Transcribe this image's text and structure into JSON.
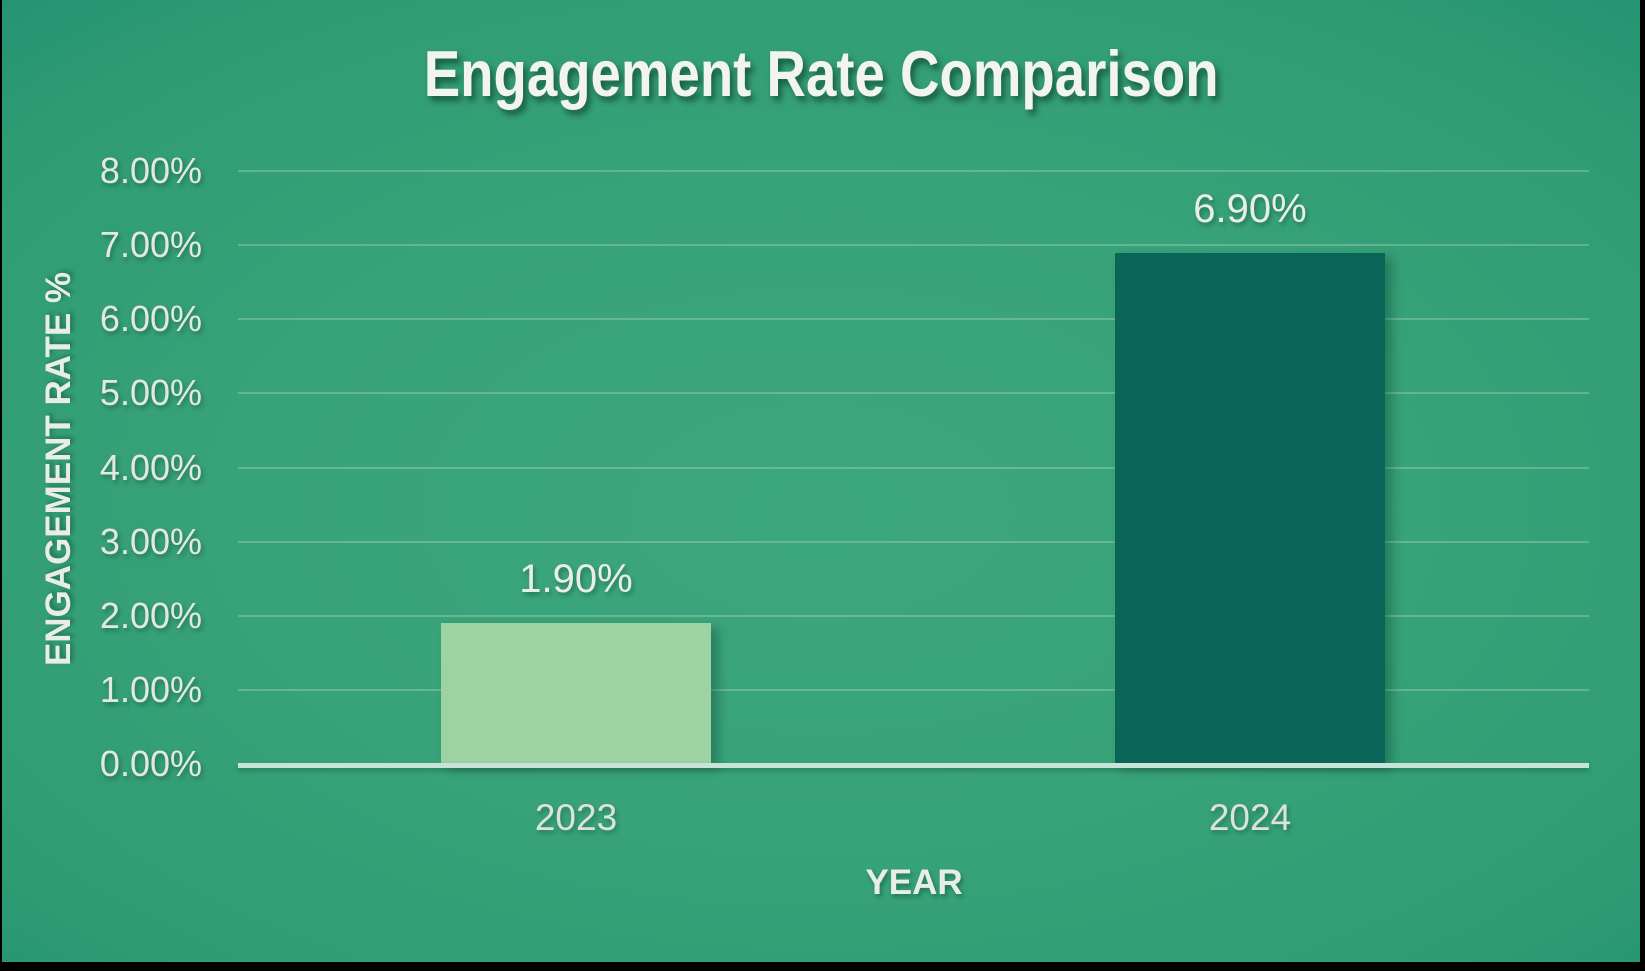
{
  "chart_data": {
    "type": "bar",
    "title": "Engagement Rate Comparison",
    "xlabel": "YEAR",
    "ylabel": "ENGAGEMENT RATE %",
    "categories": [
      "2023",
      "2024"
    ],
    "values": [
      1.9,
      6.9
    ],
    "value_labels": [
      "1.90%",
      "6.90%"
    ],
    "ylim": [
      0,
      8
    ],
    "ytick_step": 1,
    "ytick_labels": [
      "0.00%",
      "1.00%",
      "2.00%",
      "3.00%",
      "4.00%",
      "5.00%",
      "6.00%",
      "7.00%",
      "8.00%"
    ],
    "grid": true,
    "legend": "none",
    "colors": {
      "bar_2023": "#9dd3a3",
      "bar_2024": "#0a6458",
      "background_center": "#3da67c",
      "background_edge": "#087967",
      "gridline": "rgba(255,255,255,0.22)",
      "axis_line": "#c8e3d7",
      "text": "#e9ede9",
      "title_text": "#f2f4f1"
    }
  }
}
